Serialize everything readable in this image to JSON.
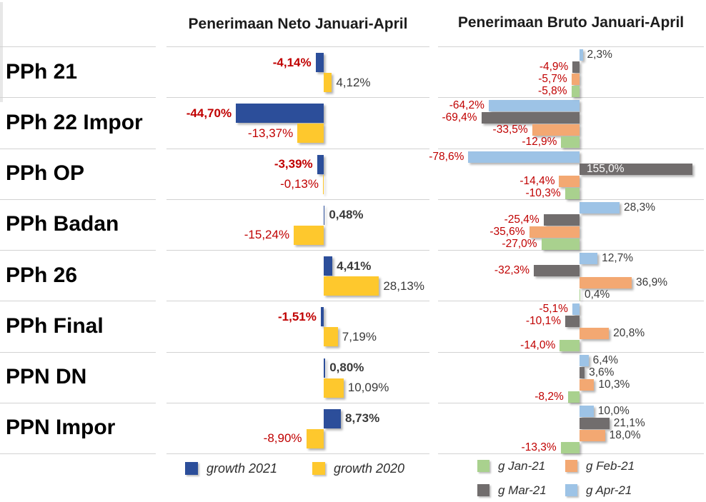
{
  "page": {
    "background": "#ffffff",
    "row_separator_color": "#d2d2d2",
    "negative_label_color": "#c00000",
    "positive_label_color": "#3a3a3a"
  },
  "chart_data": [
    {
      "type": "bar",
      "orientation": "horizontal",
      "title": "Penerimaan Neto Januari-April",
      "categories": [
        "PPh 21",
        "PPh 22 Impor",
        "PPh OP",
        "PPh Badan",
        "PPh 26",
        "PPh Final",
        "PPN DN",
        "PPN Impor"
      ],
      "xlim": [
        -80,
        55
      ],
      "grid": "row-separators-only",
      "legend_position": "bottom",
      "series": [
        {
          "name": "growth 2021",
          "color": "#2c4e9a",
          "bold_value_labels": true,
          "values": [
            -4.14,
            -44.7,
            -3.39,
            0.48,
            4.41,
            -1.51,
            0.8,
            8.73
          ],
          "value_labels": [
            "-4,14%",
            "-44,70%",
            "-3,39%",
            "0,48%",
            "4,41%",
            "-1,51%",
            "0,80%",
            "8,73%"
          ]
        },
        {
          "name": "growth 2020",
          "color": "#fec82d",
          "bold_value_labels": false,
          "values": [
            4.12,
            -13.37,
            -0.13,
            -15.24,
            28.13,
            7.19,
            10.09,
            -8.9
          ],
          "value_labels": [
            "4,12%",
            "-13,37%",
            "-0,13%",
            "-15,24%",
            "28,13%",
            "7,19%",
            "10,09%",
            "-8,90%"
          ]
        }
      ],
      "legend": [
        {
          "name": "growth 2021",
          "color": "#2c4e9a"
        },
        {
          "name": "growth 2020",
          "color": "#fec82d"
        }
      ]
    },
    {
      "type": "bar",
      "orientation": "horizontal",
      "title": "Penerimaan Bruto Januari-April",
      "categories": [
        "PPh 21",
        "PPh 22 Impor",
        "PPh OP",
        "PPh Badan",
        "PPh 26",
        "PPh Final",
        "PPN DN",
        "PPN Impor"
      ],
      "xlim": [
        -80,
        80
      ],
      "grid": "row-separators-only",
      "legend_position": "bottom",
      "note": "series listed top-to-bottom as displayed; 155,0% bar is clipped at axis max with white label inside bar",
      "series": [
        {
          "name": "g Apr-21",
          "color": "#9dc3e6",
          "bold_value_labels": false,
          "values": [
            2.3,
            -64.2,
            -78.6,
            28.3,
            12.7,
            -5.1,
            6.4,
            10.0
          ],
          "value_labels": [
            "2,3%",
            "-64,2%",
            "-78,6%",
            "28,3%",
            "12,7%",
            "-5,1%",
            "6,4%",
            "10,0%"
          ]
        },
        {
          "name": "g Mar-21",
          "color": "#716d6d",
          "bold_value_labels": false,
          "values": [
            -4.9,
            -69.4,
            155.0,
            -25.4,
            -32.3,
            -10.1,
            3.6,
            21.1
          ],
          "value_labels": [
            "-4,9%",
            "-69,4%",
            "155,0%",
            "-25,4%",
            "-32,3%",
            "-10,1%",
            "3,6%",
            "21,1%"
          ]
        },
        {
          "name": "g Feb-21",
          "color": "#f3a872",
          "bold_value_labels": false,
          "values": [
            -5.7,
            -33.5,
            -14.4,
            -35.6,
            36.9,
            20.8,
            10.3,
            18.0
          ],
          "value_labels": [
            "-5,7%",
            "-33,5%",
            "-14,4%",
            "-35,6%",
            "36,9%",
            "20,8%",
            "10,3%",
            "18,0%"
          ]
        },
        {
          "name": "g Jan-21",
          "color": "#a9d18e",
          "bold_value_labels": false,
          "values": [
            -5.8,
            -12.9,
            -10.3,
            -27.0,
            0.4,
            -14.0,
            -8.2,
            -13.3
          ],
          "value_labels": [
            "-5,8%",
            "-12,9%",
            "-10,3%",
            "-27,0%",
            "0,4%",
            "-14,0%",
            "-8,2%",
            "-13,3%"
          ]
        }
      ],
      "legend": [
        {
          "name": "g Jan-21",
          "color": "#a9d18e"
        },
        {
          "name": "g Feb-21",
          "color": "#f3a872"
        },
        {
          "name": "g Mar-21",
          "color": "#716d6d"
        },
        {
          "name": "g Apr-21",
          "color": "#9dc3e6"
        }
      ]
    }
  ]
}
